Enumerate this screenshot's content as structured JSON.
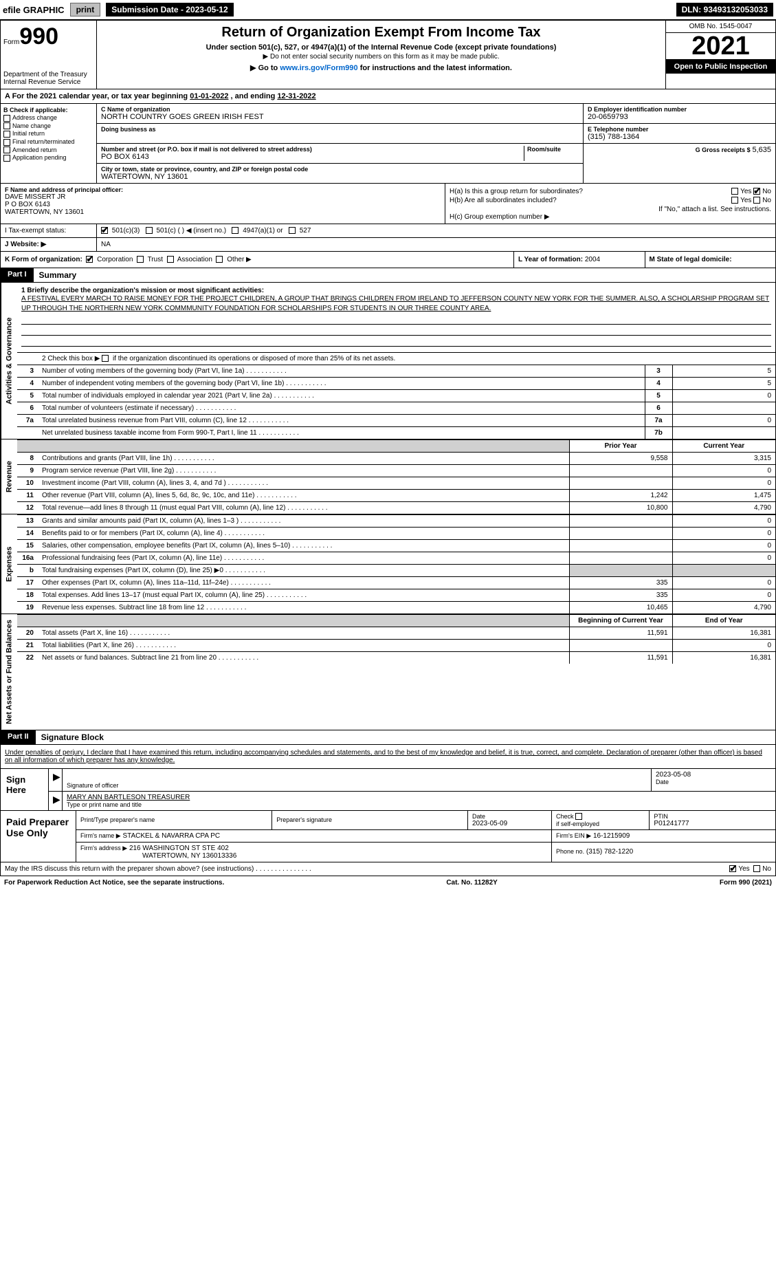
{
  "topbar": {
    "efile": "efile GRAPHIC",
    "print": "print",
    "submission": "Submission Date - 2023-05-12",
    "dln": "DLN: 93493132053033"
  },
  "header": {
    "form_label": "Form",
    "form_num": "990",
    "dept": "Department of the Treasury Internal Revenue Service",
    "title": "Return of Organization Exempt From Income Tax",
    "subtitle": "Under section 501(c), 527, or 4947(a)(1) of the Internal Revenue Code (except private foundations)",
    "note1": "▶ Do not enter social security numbers on this form as it may be made public.",
    "note2": "▶ Go to www.irs.gov/Form990 for instructions and the latest information.",
    "link": "www.irs.gov/Form990",
    "omb": "OMB No. 1545-0047",
    "year": "2021",
    "inspection": "Open to Public Inspection"
  },
  "period": {
    "prefix": "A For the 2021 calendar year, or tax year beginning",
    "begin": "01-01-2022",
    "mid": ", and ending",
    "end": "12-31-2022"
  },
  "section_b": {
    "label": "B Check if applicable:",
    "items": [
      "Address change",
      "Name change",
      "Initial return",
      "Final return/terminated",
      "Amended return",
      "Application pending"
    ]
  },
  "section_c": {
    "name_label": "C Name of organization",
    "name": "NORTH COUNTRY GOES GREEN IRISH FEST",
    "dba_label": "Doing business as",
    "street_label": "Number and street (or P.O. box if mail is not delivered to street address)",
    "room_label": "Room/suite",
    "street": "PO BOX 6143",
    "city_label": "City or town, state or province, country, and ZIP or foreign postal code",
    "city": "WATERTOWN, NY  13601"
  },
  "section_d": {
    "ein_label": "D Employer identification number",
    "ein": "20-0659793",
    "phone_label": "E Telephone number",
    "phone": "(315) 788-1364",
    "gross_label": "G Gross receipts $",
    "gross": "5,635"
  },
  "section_f": {
    "label": "F Name and address of principal officer:",
    "name": "DAVE MISSERT JR",
    "addr1": "P O BOX 6143",
    "addr2": "WATERTOWN, NY  13601"
  },
  "section_h": {
    "ha_label": "H(a)  Is this a group return for subordinates?",
    "ha_yes": "Yes",
    "ha_no": "No",
    "hb_label": "H(b)  Are all subordinates included?",
    "hb_yes": "Yes",
    "hb_no": "No",
    "hb_note": "If \"No,\" attach a list. See instructions.",
    "hc_label": "H(c)  Group exemption number ▶"
  },
  "section_i": {
    "label": "I  Tax-exempt status:",
    "opt1": "501(c)(3)",
    "opt2": "501(c) (  ) ◀ (insert no.)",
    "opt3": "4947(a)(1) or",
    "opt4": "527"
  },
  "section_j": {
    "label": "J  Website: ▶",
    "value": "NA"
  },
  "section_k": {
    "label": "K Form of organization:",
    "opts": [
      "Corporation",
      "Trust",
      "Association",
      "Other ▶"
    ]
  },
  "section_l": {
    "label": "L Year of formation:",
    "value": "2004"
  },
  "section_m": {
    "label": "M State of legal domicile:",
    "value": ""
  },
  "part1": {
    "header": "Part I",
    "title": "Summary",
    "tabs": {
      "ag": "Activities & Governance",
      "rev": "Revenue",
      "exp": "Expenses",
      "nab": "Net Assets or Fund Balances"
    },
    "mission_label": "1  Briefly describe the organization's mission or most significant activities:",
    "mission": "A FESTIVAL EVERY MARCH TO RAISE MONEY FOR THE PROJECT CHILDREN, A GROUP THAT BRINGS CHILDREN FROM IRELAND TO JEFFERSON COUNTY NEW YORK FOR THE SUMMER. ALSO, A SCHOLARSHIP PROGRAM SET UP THROUGH THE NORTHERN NEW YORK COMMMUNITY FOUNDATION FOR SCHOLARSHIPS FOR STUDENTS IN OUR THREE COUNTY AREA.",
    "line2_pre": "2  Check this box ▶",
    "line2_post": "if the organization discontinued its operations or disposed of more than 25% of its net assets.",
    "rows_ag": [
      {
        "n": "3",
        "desc": "Number of voting members of the governing body (Part VI, line 1a)",
        "box": "3",
        "val": "5"
      },
      {
        "n": "4",
        "desc": "Number of independent voting members of the governing body (Part VI, line 1b)",
        "box": "4",
        "val": "5"
      },
      {
        "n": "5",
        "desc": "Total number of individuals employed in calendar year 2021 (Part V, line 2a)",
        "box": "5",
        "val": "0"
      },
      {
        "n": "6",
        "desc": "Total number of volunteers (estimate if necessary)",
        "box": "6",
        "val": ""
      },
      {
        "n": "7a",
        "desc": "Total unrelated business revenue from Part VIII, column (C), line 12",
        "box": "7a",
        "val": "0"
      },
      {
        "n": "",
        "desc": "Net unrelated business taxable income from Form 990-T, Part I, line 11",
        "box": "7b",
        "val": ""
      }
    ],
    "py_header": "Prior Year",
    "cy_header": "Current Year",
    "rows_rev": [
      {
        "n": "8",
        "desc": "Contributions and grants (Part VIII, line 1h)",
        "py": "9,558",
        "cy": "3,315"
      },
      {
        "n": "9",
        "desc": "Program service revenue (Part VIII, line 2g)",
        "py": "",
        "cy": "0"
      },
      {
        "n": "10",
        "desc": "Investment income (Part VIII, column (A), lines 3, 4, and 7d )",
        "py": "",
        "cy": "0"
      },
      {
        "n": "11",
        "desc": "Other revenue (Part VIII, column (A), lines 5, 6d, 8c, 9c, 10c, and 11e)",
        "py": "1,242",
        "cy": "1,475"
      },
      {
        "n": "12",
        "desc": "Total revenue—add lines 8 through 11 (must equal Part VIII, column (A), line 12)",
        "py": "10,800",
        "cy": "4,790"
      }
    ],
    "rows_exp": [
      {
        "n": "13",
        "desc": "Grants and similar amounts paid (Part IX, column (A), lines 1–3 )",
        "py": "",
        "cy": "0"
      },
      {
        "n": "14",
        "desc": "Benefits paid to or for members (Part IX, column (A), line 4)",
        "py": "",
        "cy": "0"
      },
      {
        "n": "15",
        "desc": "Salaries, other compensation, employee benefits (Part IX, column (A), lines 5–10)",
        "py": "",
        "cy": "0"
      },
      {
        "n": "16a",
        "desc": "Professional fundraising fees (Part IX, column (A), line 11e)",
        "py": "",
        "cy": "0"
      },
      {
        "n": "b",
        "desc": "Total fundraising expenses (Part IX, column (D), line 25) ▶0",
        "py": "",
        "cy": "",
        "shaded": true
      },
      {
        "n": "17",
        "desc": "Other expenses (Part IX, column (A), lines 11a–11d, 11f–24e)",
        "py": "335",
        "cy": "0"
      },
      {
        "n": "18",
        "desc": "Total expenses. Add lines 13–17 (must equal Part IX, column (A), line 25)",
        "py": "335",
        "cy": "0"
      },
      {
        "n": "19",
        "desc": "Revenue less expenses. Subtract line 18 from line 12",
        "py": "10,465",
        "cy": "4,790"
      }
    ],
    "bcy_header": "Beginning of Current Year",
    "ecy_header": "End of Year",
    "rows_nab": [
      {
        "n": "20",
        "desc": "Total assets (Part X, line 16)",
        "py": "11,591",
        "cy": "16,381"
      },
      {
        "n": "21",
        "desc": "Total liabilities (Part X, line 26)",
        "py": "",
        "cy": "0"
      },
      {
        "n": "22",
        "desc": "Net assets or fund balances. Subtract line 21 from line 20",
        "py": "11,591",
        "cy": "16,381"
      }
    ]
  },
  "part2": {
    "header": "Part II",
    "title": "Signature Block",
    "declaration": "Under penalties of perjury, I declare that I have examined this return, including accompanying schedules and statements, and to the best of my knowledge and belief, it is true, correct, and complete. Declaration of preparer (other than officer) is based on all information of which preparer has any knowledge."
  },
  "sign": {
    "label": "Sign Here",
    "sig_label": "Signature of officer",
    "date": "2023-05-08",
    "date_label": "Date",
    "name": "MARY ANN BARTLESON  TREASURER",
    "name_label": "Type or print name and title"
  },
  "prep": {
    "label": "Paid Preparer Use Only",
    "c1": "Print/Type preparer's name",
    "c2": "Preparer's signature",
    "c3_label": "Date",
    "c3": "2023-05-09",
    "c4_label": "Check",
    "c4_sub": "if self-employed",
    "c5_label": "PTIN",
    "c5": "P01241777",
    "firm_label": "Firm's name    ▶",
    "firm": "STACKEL & NAVARRA CPA PC",
    "ein_label": "Firm's EIN ▶",
    "ein": "16-1215909",
    "addr_label": "Firm's address ▶",
    "addr1": "216 WASHINGTON ST STE 402",
    "addr2": "WATERTOWN, NY  136013336",
    "phone_label": "Phone no.",
    "phone": "(315) 782-1220"
  },
  "bottom": {
    "discuss": "May the IRS discuss this return with the preparer shown above? (see instructions)",
    "yes": "Yes",
    "no": "No"
  },
  "footer": {
    "left": "For Paperwork Reduction Act Notice, see the separate instructions.",
    "center": "Cat. No. 11282Y",
    "right": "Form 990 (2021)"
  },
  "colors": {
    "black": "#000000",
    "white": "#ffffff",
    "gray_btn": "#bfbfbf",
    "shaded": "#d0d0d0",
    "link": "#0066cc"
  }
}
